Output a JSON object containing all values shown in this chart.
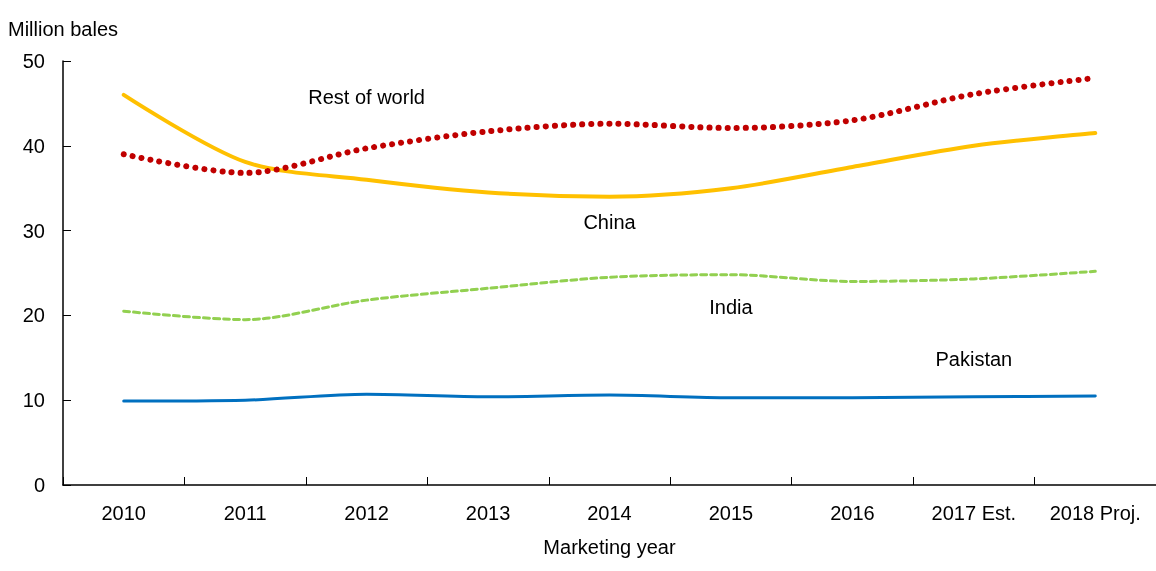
{
  "chart_data": {
    "type": "line",
    "xlabel": "Marketing year",
    "ylabel": "Million bales",
    "categories": [
      "2010",
      "2011",
      "2012",
      "2013",
      "2014",
      "2015",
      "2016",
      "2017 Est.",
      "2018 Proj."
    ],
    "series": [
      {
        "name": "China",
        "color": "#ffc000",
        "line_style": "solid",
        "values": [
          46,
          38.1,
          36,
          34.5,
          34,
          35,
          37.5,
          40,
          41.5
        ]
      },
      {
        "name": "Rest of world",
        "color": "#c00000",
        "line_style": "dotted",
        "values": [
          39,
          36.8,
          39.7,
          41.7,
          42.6,
          42.1,
          43,
          46.1,
          48
        ]
      },
      {
        "name": "India",
        "color": "#92d050",
        "line_style": "dashed",
        "values": [
          20.5,
          19.5,
          21.8,
          23.2,
          24.5,
          24.8,
          24,
          24.3,
          25.2
        ]
      },
      {
        "name": "Pakistan",
        "color": "#0070c0",
        "line_style": "solid",
        "values": [
          9.9,
          10,
          10.7,
          10.4,
          10.6,
          10.3,
          10.3,
          10.4,
          10.5
        ]
      }
    ],
    "ylim": [
      0,
      50
    ],
    "yticks": [
      0,
      10,
      20,
      30,
      40,
      50
    ],
    "grid": false,
    "legend": false,
    "marker": "none"
  }
}
